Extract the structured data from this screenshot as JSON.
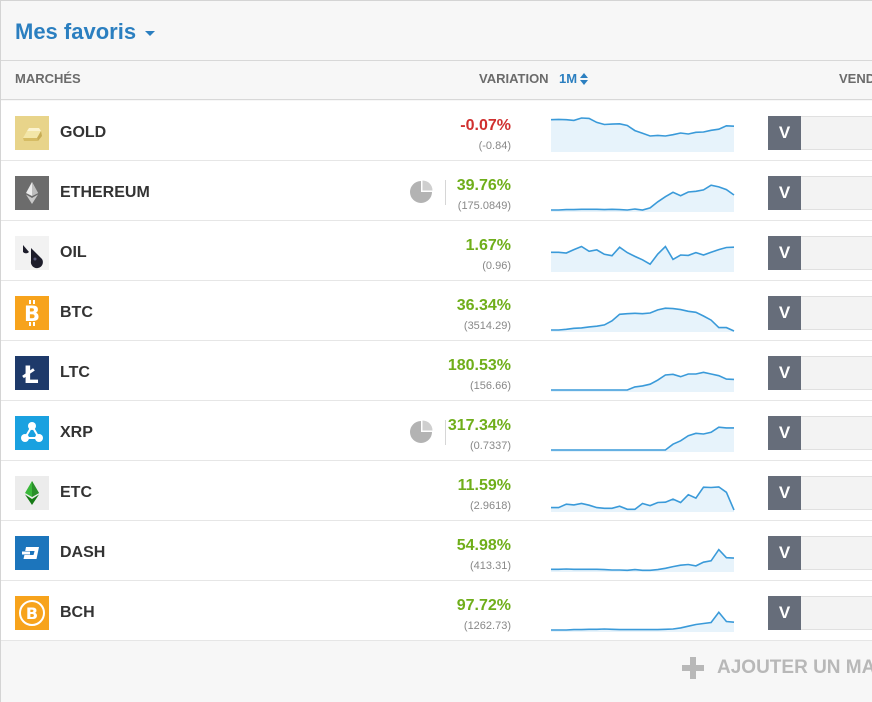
{
  "header": {
    "title": "Mes favoris"
  },
  "columns": {
    "markets": "MARCHÉS",
    "variation": "VARIATION",
    "period": "1M",
    "sell": "VEND"
  },
  "sell_button_label": "V",
  "footer": {
    "add_label": "AJOUTER UN MA"
  },
  "colors": {
    "accent": "#2b7fc0",
    "up": "#6fae1a",
    "down": "#d0302f",
    "spark_line": "#3a9ad9",
    "spark_fill": "#e7f3fb",
    "sell_button": "#666d7a"
  },
  "rows": [
    {
      "name": "GOLD",
      "icon": "gold-bar-icon",
      "pct": "-0.07%",
      "abs": "(-0.84)",
      "direction": "down",
      "has_pie": false,
      "spark": [
        92,
        93,
        92,
        90,
        97,
        96,
        84,
        78,
        79,
        80,
        75,
        60,
        52,
        44,
        46,
        44,
        48,
        53,
        50,
        55,
        56,
        61,
        64,
        74,
        73
      ]
    },
    {
      "name": "ETHEREUM",
      "icon": "ethereum-icon",
      "pct": "39.76%",
      "abs": "(175.0849)",
      "direction": "up",
      "has_pie": true,
      "spark": [
        3,
        3,
        4,
        4,
        5,
        5,
        5,
        4,
        5,
        4,
        3,
        6,
        3,
        9,
        27,
        42,
        55,
        45,
        56,
        58,
        62,
        76,
        71,
        63,
        47
      ]
    },
    {
      "name": "OIL",
      "icon": "oil-drop-icon",
      "pct": "1.67%",
      "abs": "(0.96)",
      "direction": "up",
      "has_pie": false,
      "spark": [
        55,
        55,
        53,
        63,
        72,
        58,
        62,
        49,
        45,
        70,
        54,
        43,
        33,
        20,
        50,
        72,
        34,
        47,
        46,
        54,
        47,
        55,
        63,
        69,
        70
      ]
    },
    {
      "name": "BTC",
      "icon": "bitcoin-icon",
      "pct": "36.34%",
      "abs": "(3514.29)",
      "direction": "up",
      "has_pie": false,
      "spark": [
        3,
        3,
        5,
        8,
        9,
        12,
        14,
        18,
        30,
        49,
        51,
        52,
        51,
        53,
        62,
        67,
        66,
        63,
        58,
        55,
        44,
        32,
        10,
        10,
        0
      ]
    },
    {
      "name": "LTC",
      "icon": "litecoin-icon",
      "pct": "180.53%",
      "abs": "(156.66)",
      "direction": "up",
      "has_pie": false,
      "spark": [
        3,
        3,
        3,
        3,
        3,
        3,
        3,
        3,
        3,
        3,
        3,
        12,
        15,
        20,
        32,
        47,
        49,
        42,
        50,
        50,
        55,
        50,
        45,
        35,
        34
      ]
    },
    {
      "name": "XRP",
      "icon": "ripple-icon",
      "pct": "317.34%",
      "abs": "(0.7337)",
      "direction": "up",
      "has_pie": true,
      "spark": [
        3,
        3,
        3,
        3,
        3,
        3,
        3,
        3,
        3,
        3,
        3,
        3,
        3,
        3,
        3,
        3,
        20,
        30,
        45,
        52,
        50,
        55,
        70,
        68,
        68
      ]
    },
    {
      "name": "ETC",
      "icon": "ethereum-classic-icon",
      "pct": "11.59%",
      "abs": "(2.9618)",
      "direction": "up",
      "has_pie": false,
      "spark": [
        10,
        10,
        20,
        18,
        22,
        17,
        10,
        8,
        8,
        14,
        5,
        5,
        22,
        16,
        25,
        26,
        35,
        25,
        48,
        38,
        70,
        69,
        71,
        55,
        3
      ]
    },
    {
      "name": "DASH",
      "icon": "dash-icon",
      "pct": "54.98%",
      "abs": "(413.31)",
      "direction": "up",
      "has_pie": false,
      "spark": [
        5,
        5,
        6,
        5,
        5,
        5,
        5,
        4,
        3,
        3,
        2,
        4,
        2,
        2,
        4,
        8,
        13,
        17,
        19,
        15,
        26,
        30,
        63,
        39,
        38
      ]
    },
    {
      "name": "BCH",
      "icon": "bitcoin-cash-icon",
      "pct": "97.72%",
      "abs": "(1262.73)",
      "direction": "up",
      "has_pie": false,
      "spark": [
        3,
        3,
        3,
        4,
        4,
        5,
        5,
        6,
        5,
        4,
        4,
        4,
        4,
        4,
        4,
        5,
        6,
        9,
        14,
        19,
        22,
        25,
        55,
        28,
        26
      ]
    }
  ]
}
